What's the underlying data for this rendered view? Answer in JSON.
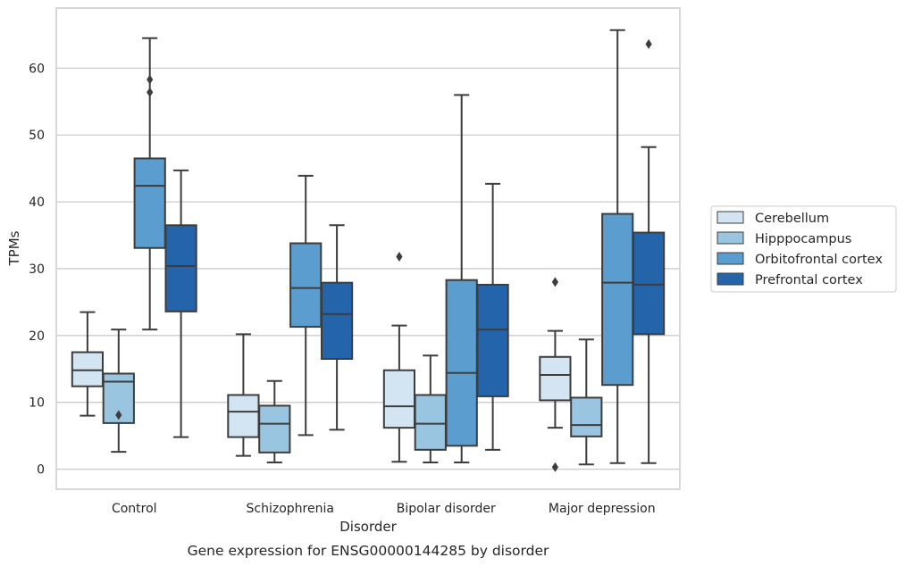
{
  "chart_data": {
    "type": "boxplot",
    "title": "",
    "caption": "Gene expression for ENSG00000144285 by disorder",
    "xlabel": "Disorder",
    "ylabel": "TPMs",
    "ylim": [
      -3,
      69
    ],
    "yticks": [
      0,
      10,
      20,
      30,
      40,
      50,
      60
    ],
    "grid": "horizontal",
    "legend_position": "right",
    "categories": [
      "Control",
      "Schizophrenia",
      "Bipolar disorder",
      "Major depression"
    ],
    "series": [
      {
        "name": "Cerebellum",
        "color": "#d3e4f3",
        "boxes": [
          {
            "whisker_low": 8,
            "q1": 12.4,
            "median": 14.8,
            "q3": 17.5,
            "whisker_high": 23.5,
            "outliers": []
          },
          {
            "whisker_low": 2,
            "q1": 4.8,
            "median": 8.6,
            "q3": 11.1,
            "whisker_high": 20.2,
            "outliers": []
          },
          {
            "whisker_low": 1.1,
            "q1": 6.2,
            "median": 9.4,
            "q3": 14.8,
            "whisker_high": 21.5,
            "outliers": [
              31.8
            ]
          },
          {
            "whisker_low": 6.2,
            "q1": 10.3,
            "median": 14.1,
            "q3": 16.8,
            "whisker_high": 20.7,
            "outliers": [
              28,
              0.3
            ]
          }
        ]
      },
      {
        "name": "Hipppocampus",
        "color": "#9ac5e0",
        "boxes": [
          {
            "whisker_low": 2.6,
            "q1": 6.9,
            "median": 13.1,
            "q3": 14.3,
            "whisker_high": 20.9,
            "outliers": [
              8.1
            ]
          },
          {
            "whisker_low": 1,
            "q1": 2.5,
            "median": 6.8,
            "q3": 9.5,
            "whisker_high": 13.2,
            "outliers": []
          },
          {
            "whisker_low": 1,
            "q1": 2.9,
            "median": 6.8,
            "q3": 11.1,
            "whisker_high": 17,
            "outliers": []
          },
          {
            "whisker_low": 0.7,
            "q1": 4.9,
            "median": 6.6,
            "q3": 10.7,
            "whisker_high": 19.4,
            "outliers": []
          }
        ]
      },
      {
        "name": "Orbitofrontal cortex",
        "color": "#5a9dce",
        "boxes": [
          {
            "whisker_low": 20.9,
            "q1": 33.1,
            "median": 42.4,
            "q3": 46.5,
            "whisker_high": 64.5,
            "outliers": [
              58.3,
              56.4
            ]
          },
          {
            "whisker_low": 5.1,
            "q1": 21.3,
            "median": 27.1,
            "q3": 33.8,
            "whisker_high": 43.9,
            "outliers": []
          },
          {
            "whisker_low": 1,
            "q1": 3.5,
            "median": 14.4,
            "q3": 28.3,
            "whisker_high": 56,
            "outliers": []
          },
          {
            "whisker_low": 0.9,
            "q1": 12.6,
            "median": 27.9,
            "q3": 38.2,
            "whisker_high": 65.7,
            "outliers": []
          }
        ]
      },
      {
        "name": "Prefrontal cortex",
        "color": "#2464ab",
        "boxes": [
          {
            "whisker_low": 4.8,
            "q1": 23.6,
            "median": 30.4,
            "q3": 36.5,
            "whisker_high": 44.7,
            "outliers": []
          },
          {
            "whisker_low": 5.9,
            "q1": 16.5,
            "median": 23.2,
            "q3": 27.9,
            "whisker_high": 36.5,
            "outliers": []
          },
          {
            "whisker_low": 2.9,
            "q1": 10.9,
            "median": 20.9,
            "q3": 27.6,
            "whisker_high": 42.7,
            "outliers": []
          },
          {
            "whisker_low": 0.9,
            "q1": 20.2,
            "median": 27.6,
            "q3": 35.4,
            "whisker_high": 48.2,
            "outliers": [
              63.6
            ]
          }
        ]
      }
    ]
  }
}
